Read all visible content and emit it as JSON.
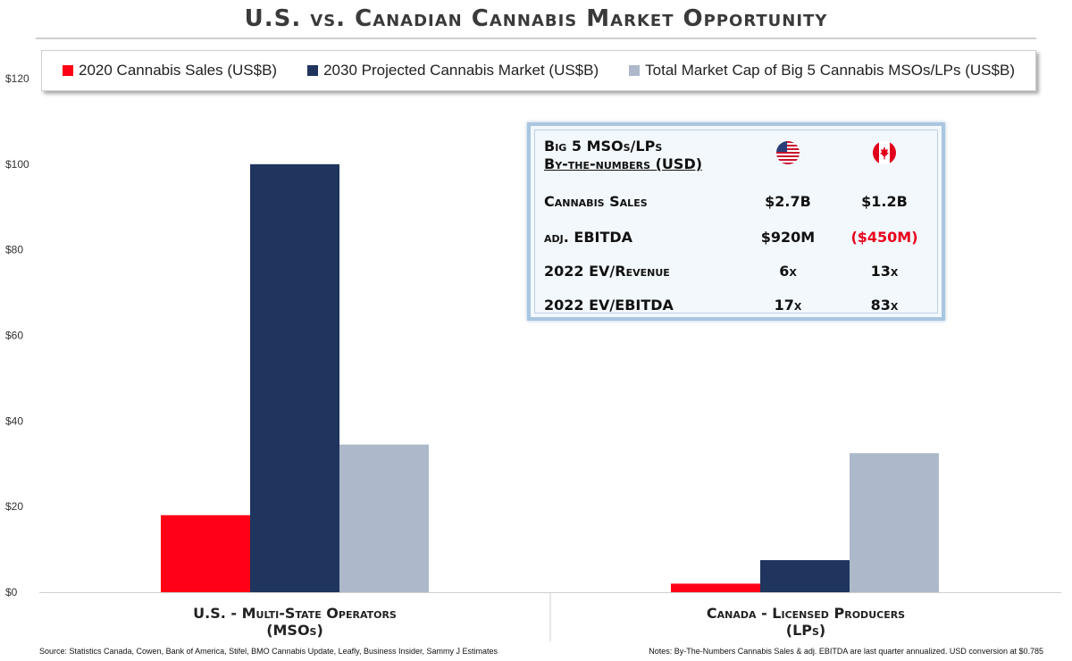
{
  "title": "U.S. vs. Canadian Cannabis Market Opportunity",
  "legend": [
    {
      "label": "2020 Cannabis Sales (US$B)",
      "color": "#ff0016"
    },
    {
      "label": "2030 Projected Cannabis Market (US$B)",
      "color": "#1f355e"
    },
    {
      "label": "Total Market Cap of Big 5 Cannabis MSOs/LPs (US$B)",
      "color": "#adb9ca"
    }
  ],
  "chart_data": {
    "type": "bar",
    "categories": [
      "U.S. - Multi-State Operators (MSOs)",
      "Canada - Licensed Producers (LPs)"
    ],
    "category_lines": [
      [
        "U.S. - Multi-State Operators",
        "(MSOs)"
      ],
      [
        "Canada - Licensed Producers",
        "(LPs)"
      ]
    ],
    "series": [
      {
        "name": "2020 Cannabis Sales (US$B)",
        "values": [
          18,
          2
        ],
        "color": "#ff0016"
      },
      {
        "name": "2030 Projected Cannabis Market (US$B)",
        "values": [
          100,
          7.5
        ],
        "color": "#1f355e"
      },
      {
        "name": "Total Market Cap of Big 5 Cannabis MSOs/LPs (US$B)",
        "values": [
          34.5,
          32.5
        ],
        "color": "#adb9ca"
      }
    ],
    "ylim": [
      0,
      120
    ],
    "yticks": [
      "$0",
      "$20",
      "$40",
      "$60",
      "$80",
      "$100",
      "$120"
    ],
    "ytick_values": [
      0,
      20,
      40,
      60,
      80,
      100,
      120
    ],
    "grid": false,
    "legend_position": "top"
  },
  "stats_box": {
    "heading_line1": "Big 5 MSOs/LPs",
    "heading_line2": "By-the-numbers (USD)",
    "us_flag": "us-flag-icon",
    "ca_flag": "canada-flag-icon",
    "rows": [
      {
        "label": "Cannabis Sales",
        "us": "$2.7B",
        "ca": "$1.2B"
      },
      {
        "label": "adj. EBITDA",
        "us": "$920M",
        "ca": "($450M)"
      },
      {
        "label": "2022 EV/Revenue",
        "us": "6x",
        "ca": "13x"
      },
      {
        "label": "2022 EV/EBITDA",
        "us": "17x",
        "ca": "83x"
      }
    ],
    "negative_color": "#e8001c"
  },
  "footnotes": {
    "source": "Source: Statistics Canada, Cowen, Bank of America, Stifel, BMO Cannabis Update, Leafly, Business Insider, Sammy J Estimates",
    "notes": "Notes: By-The-Numbers Cannabis Sales & adj. EBITDA are last quarter annualized. USD conversion at $0.785"
  }
}
